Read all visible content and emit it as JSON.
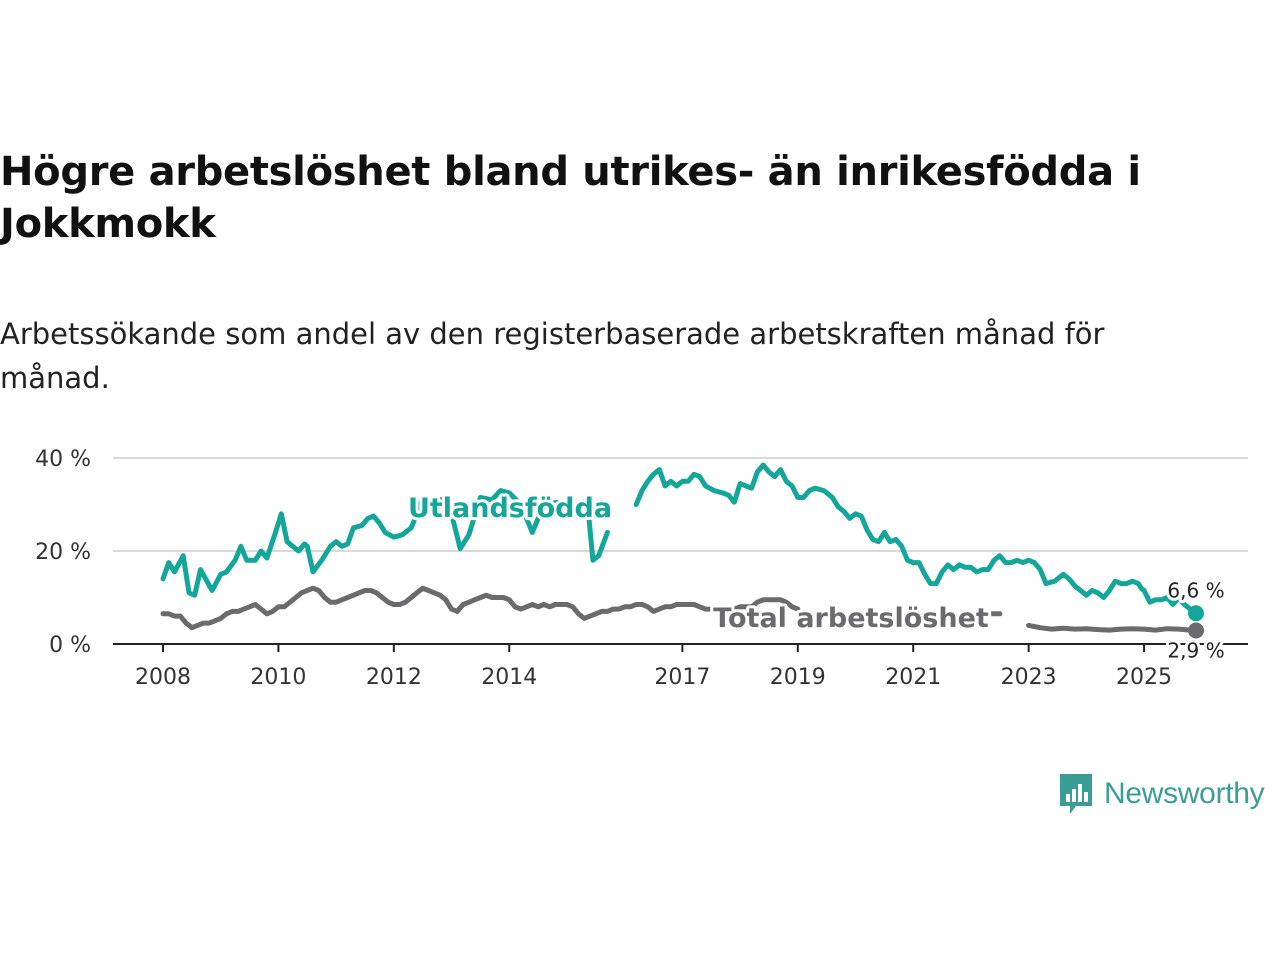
{
  "title": "Högre arbetslöshet bland utrikes- än inrikesfödda i Jokkmokk",
  "subtitle": "Arbetssökande som andel av den registerbaserade arbetskraften månad för månad.",
  "brand": {
    "name": "Newsworthy",
    "color": "#3a9e94"
  },
  "chart_data": {
    "type": "line",
    "title": "Högre arbetslöshet bland utrikes- än inrikesfödda i Jokkmokk",
    "xlabel": "",
    "ylabel": "",
    "xlim": [
      2008.0,
      2025.9
    ],
    "ylim": [
      0,
      40
    ],
    "yticks": [
      0,
      20,
      40
    ],
    "ytick_labels": [
      "0 %",
      "20 %",
      "40 %"
    ],
    "xticks": [
      2008,
      2010,
      2012,
      2014,
      2017,
      2019,
      2021,
      2023,
      2025
    ],
    "xtick_labels": [
      "2008",
      "2010",
      "2012",
      "2014",
      "2017",
      "2019",
      "2021",
      "2023",
      "2025"
    ],
    "grid": true,
    "legend": "inline labels",
    "series": [
      {
        "name": "Utlandsfödda",
        "color": "#13a699",
        "end_label": "6,6 %",
        "points": [
          [
            2008.0,
            14
          ],
          [
            2008.1,
            17.5
          ],
          [
            2008.2,
            15.5
          ],
          [
            2008.35,
            19
          ],
          [
            2008.45,
            11
          ],
          [
            2008.55,
            10.5
          ],
          [
            2008.65,
            16
          ],
          [
            2008.85,
            11.5
          ],
          [
            2009.0,
            15
          ],
          [
            2009.1,
            15.5
          ],
          [
            2009.25,
            18
          ],
          [
            2009.35,
            21
          ],
          [
            2009.45,
            18
          ],
          [
            2009.6,
            18
          ],
          [
            2009.7,
            20
          ],
          [
            2009.8,
            18.5
          ],
          [
            2009.95,
            24
          ],
          [
            2010.05,
            28
          ],
          [
            2010.15,
            22
          ],
          [
            2010.25,
            21
          ],
          [
            2010.35,
            20
          ],
          [
            2010.45,
            21.5
          ],
          [
            2010.5,
            21
          ],
          [
            2010.6,
            15.5
          ],
          [
            2010.75,
            18
          ],
          [
            2010.9,
            21
          ],
          [
            2011.0,
            22
          ],
          [
            2011.1,
            21
          ],
          [
            2011.2,
            21.5
          ],
          [
            2011.3,
            25
          ],
          [
            2011.45,
            25.5
          ],
          [
            2011.55,
            27
          ],
          [
            2011.65,
            27.5
          ],
          [
            2011.75,
            26
          ],
          [
            2011.85,
            24
          ],
          [
            2012.0,
            23
          ],
          [
            2012.15,
            23.5
          ],
          [
            2012.3,
            25
          ],
          [
            2012.4,
            28
          ],
          [
            2012.5,
            31.5
          ],
          [
            2012.6,
            31
          ],
          [
            2012.9,
            31
          ],
          [
            2013.0,
            28
          ],
          [
            2013.15,
            20.5
          ],
          [
            2013.3,
            23.5
          ],
          [
            2013.5,
            31.5
          ],
          [
            2013.7,
            31
          ],
          [
            2013.85,
            33
          ],
          [
            2014.0,
            32.5
          ],
          [
            2014.2,
            30
          ],
          [
            2014.4,
            24
          ],
          [
            2014.6,
            30
          ],
          [
            2014.85,
            30.5
          ],
          [
            2015.0,
            29
          ],
          [
            2015.2,
            30
          ],
          [
            2015.35,
            31
          ],
          [
            2015.45,
            18
          ],
          [
            2015.55,
            19
          ],
          [
            2015.7,
            24
          ],
          [
            2016.2,
            30
          ],
          [
            2016.3,
            33
          ],
          [
            2016.4,
            35
          ],
          [
            2016.5,
            36.5
          ],
          [
            2016.6,
            37.5
          ],
          [
            2016.7,
            34
          ],
          [
            2016.8,
            35
          ],
          [
            2016.9,
            34
          ],
          [
            2017.0,
            35
          ],
          [
            2017.1,
            35
          ],
          [
            2017.2,
            36.5
          ],
          [
            2017.3,
            36
          ],
          [
            2017.4,
            34
          ],
          [
            2017.55,
            33
          ],
          [
            2017.7,
            32.5
          ],
          [
            2017.8,
            32
          ],
          [
            2017.9,
            30.5
          ],
          [
            2018.0,
            34.5
          ],
          [
            2018.1,
            34
          ],
          [
            2018.2,
            33.5
          ],
          [
            2018.3,
            37
          ],
          [
            2018.4,
            38.5
          ],
          [
            2018.5,
            37
          ],
          [
            2018.6,
            36
          ],
          [
            2018.7,
            37.5
          ],
          [
            2018.8,
            35
          ],
          [
            2018.9,
            34
          ],
          [
            2019.0,
            31.5
          ],
          [
            2019.1,
            31.5
          ],
          [
            2019.2,
            33
          ],
          [
            2019.3,
            33.5
          ],
          [
            2019.45,
            33
          ],
          [
            2019.6,
            31.5
          ],
          [
            2019.7,
            29.5
          ],
          [
            2019.8,
            28.5
          ],
          [
            2019.9,
            27
          ],
          [
            2020.0,
            28
          ],
          [
            2020.1,
            27.5
          ],
          [
            2020.2,
            24.5
          ],
          [
            2020.3,
            22.5
          ],
          [
            2020.4,
            22
          ],
          [
            2020.5,
            24
          ],
          [
            2020.6,
            22
          ],
          [
            2020.7,
            22.5
          ],
          [
            2020.8,
            21
          ],
          [
            2020.9,
            18
          ],
          [
            2021.0,
            17.5
          ],
          [
            2021.1,
            17.5
          ],
          [
            2021.2,
            15
          ],
          [
            2021.3,
            13
          ],
          [
            2021.4,
            13
          ],
          [
            2021.5,
            15.5
          ],
          [
            2021.6,
            17
          ],
          [
            2021.7,
            16
          ],
          [
            2021.8,
            17
          ],
          [
            2021.9,
            16.5
          ],
          [
            2022.0,
            16.5
          ],
          [
            2022.1,
            15.5
          ],
          [
            2022.2,
            16
          ],
          [
            2022.3,
            16
          ],
          [
            2022.4,
            18
          ],
          [
            2022.5,
            19
          ],
          [
            2022.6,
            17.5
          ],
          [
            2022.7,
            17.5
          ],
          [
            2022.8,
            18
          ],
          [
            2022.9,
            17.5
          ],
          [
            2023.0,
            18
          ],
          [
            2023.1,
            17.5
          ],
          [
            2023.2,
            16
          ],
          [
            2023.3,
            13
          ],
          [
            2023.45,
            13.5
          ],
          [
            2023.6,
            15
          ],
          [
            2023.7,
            14
          ],
          [
            2023.8,
            12.5
          ],
          [
            2023.9,
            11.5
          ],
          [
            2024.0,
            10.5
          ],
          [
            2024.1,
            11.5
          ],
          [
            2024.2,
            11
          ],
          [
            2024.3,
            10
          ],
          [
            2024.4,
            11.5
          ],
          [
            2024.5,
            13.5
          ],
          [
            2024.6,
            13
          ],
          [
            2024.7,
            13
          ],
          [
            2024.8,
            13.5
          ],
          [
            2024.9,
            13
          ],
          [
            2024.95,
            12
          ],
          [
            2025.0,
            11.5
          ],
          [
            2025.1,
            9
          ],
          [
            2025.2,
            9.5
          ],
          [
            2025.3,
            9.5
          ],
          [
            2025.4,
            10
          ],
          [
            2025.5,
            8.5
          ],
          [
            2025.6,
            10
          ],
          [
            2025.7,
            8.5
          ],
          [
            2025.8,
            7.5
          ],
          [
            2025.9,
            6.6
          ]
        ]
      },
      {
        "name": "Total arbetslöshet",
        "color": "#6b6a6d",
        "end_label": "2,9 %",
        "points": [
          [
            2008.0,
            6.5
          ],
          [
            2008.1,
            6.5
          ],
          [
            2008.2,
            6
          ],
          [
            2008.3,
            6
          ],
          [
            2008.4,
            4.5
          ],
          [
            2008.5,
            3.5
          ],
          [
            2008.6,
            4
          ],
          [
            2008.7,
            4.5
          ],
          [
            2008.8,
            4.5
          ],
          [
            2008.9,
            5
          ],
          [
            2009.0,
            5.5
          ],
          [
            2009.1,
            6.5
          ],
          [
            2009.2,
            7
          ],
          [
            2009.3,
            7
          ],
          [
            2009.4,
            7.5
          ],
          [
            2009.5,
            8
          ],
          [
            2009.6,
            8.5
          ],
          [
            2009.7,
            7.5
          ],
          [
            2009.8,
            6.5
          ],
          [
            2009.9,
            7
          ],
          [
            2010.0,
            8
          ],
          [
            2010.1,
            8
          ],
          [
            2010.2,
            9
          ],
          [
            2010.3,
            10
          ],
          [
            2010.4,
            11
          ],
          [
            2010.5,
            11.5
          ],
          [
            2010.6,
            12
          ],
          [
            2010.7,
            11.5
          ],
          [
            2010.8,
            10
          ],
          [
            2010.9,
            9
          ],
          [
            2011.0,
            9
          ],
          [
            2011.1,
            9.5
          ],
          [
            2011.2,
            10
          ],
          [
            2011.3,
            10.5
          ],
          [
            2011.4,
            11
          ],
          [
            2011.5,
            11.5
          ],
          [
            2011.6,
            11.5
          ],
          [
            2011.7,
            11
          ],
          [
            2011.8,
            10
          ],
          [
            2011.9,
            9
          ],
          [
            2012.0,
            8.5
          ],
          [
            2012.1,
            8.5
          ],
          [
            2012.2,
            9
          ],
          [
            2012.3,
            10
          ],
          [
            2012.4,
            11
          ],
          [
            2012.5,
            12
          ],
          [
            2012.6,
            11.5
          ],
          [
            2012.7,
            11
          ],
          [
            2012.8,
            10.5
          ],
          [
            2012.9,
            9.5
          ],
          [
            2013.0,
            7.5
          ],
          [
            2013.1,
            7
          ],
          [
            2013.2,
            8.5
          ],
          [
            2013.3,
            9
          ],
          [
            2013.4,
            9.5
          ],
          [
            2013.5,
            10
          ],
          [
            2013.6,
            10.5
          ],
          [
            2013.7,
            10
          ],
          [
            2013.8,
            10
          ],
          [
            2013.9,
            10
          ],
          [
            2014.0,
            9.5
          ],
          [
            2014.1,
            8
          ],
          [
            2014.2,
            7.5
          ],
          [
            2014.3,
            8
          ],
          [
            2014.4,
            8.5
          ],
          [
            2014.5,
            8
          ],
          [
            2014.6,
            8.5
          ],
          [
            2014.7,
            8
          ],
          [
            2014.8,
            8.5
          ],
          [
            2014.9,
            8.5
          ],
          [
            2015.0,
            8.5
          ],
          [
            2015.1,
            8
          ],
          [
            2015.2,
            6.5
          ],
          [
            2015.3,
            5.5
          ],
          [
            2015.4,
            6
          ],
          [
            2015.5,
            6.5
          ],
          [
            2015.6,
            7
          ],
          [
            2015.7,
            7
          ],
          [
            2015.8,
            7.5
          ],
          [
            2015.9,
            7.5
          ],
          [
            2016.0,
            8
          ],
          [
            2016.1,
            8
          ],
          [
            2016.2,
            8.5
          ],
          [
            2016.3,
            8.5
          ],
          [
            2016.4,
            8
          ],
          [
            2016.5,
            7
          ],
          [
            2016.6,
            7.5
          ],
          [
            2016.7,
            8
          ],
          [
            2016.8,
            8
          ],
          [
            2016.9,
            8.5
          ],
          [
            2017.0,
            8.5
          ],
          [
            2017.1,
            8.5
          ],
          [
            2017.2,
            8.5
          ],
          [
            2017.3,
            8
          ],
          [
            2017.4,
            7.5
          ],
          [
            2017.5,
            7.5
          ],
          [
            2017.6,
            7
          ],
          [
            2017.7,
            7
          ],
          [
            2017.8,
            7.5
          ],
          [
            2017.9,
            7.5
          ],
          [
            2018.0,
            8
          ],
          [
            2018.1,
            8
          ],
          [
            2018.2,
            8
          ],
          [
            2018.3,
            9
          ],
          [
            2018.4,
            9.5
          ],
          [
            2018.5,
            9.5
          ],
          [
            2018.6,
            9.5
          ],
          [
            2018.7,
            9.5
          ],
          [
            2018.8,
            9
          ],
          [
            2018.9,
            8
          ],
          [
            2019.0,
            7.5
          ],
          [
            2022.1,
            6.5
          ],
          [
            2022.5,
            6.5
          ],
          [
            2023.0,
            4
          ],
          [
            2023.2,
            3.5
          ],
          [
            2023.4,
            3.2
          ],
          [
            2023.6,
            3.4
          ],
          [
            2023.8,
            3.2
          ],
          [
            2024.0,
            3.3
          ],
          [
            2024.2,
            3.1
          ],
          [
            2024.4,
            3.0
          ],
          [
            2024.6,
            3.2
          ],
          [
            2024.8,
            3.3
          ],
          [
            2025.0,
            3.2
          ],
          [
            2025.2,
            3.0
          ],
          [
            2025.4,
            3.3
          ],
          [
            2025.6,
            3.2
          ],
          [
            2025.8,
            3.0
          ],
          [
            2025.9,
            2.9
          ]
        ]
      }
    ],
    "annotations": [
      {
        "text": "Utlandsfödda",
        "series": "Utlandsfödda"
      },
      {
        "text": "Total arbetslöshet",
        "series": "Total arbetslöshet"
      },
      {
        "text": "6,6 %",
        "series": "Utlandsfödda",
        "position": "end"
      },
      {
        "text": "2,9 %",
        "series": "Total arbetslöshet",
        "position": "end"
      }
    ]
  }
}
